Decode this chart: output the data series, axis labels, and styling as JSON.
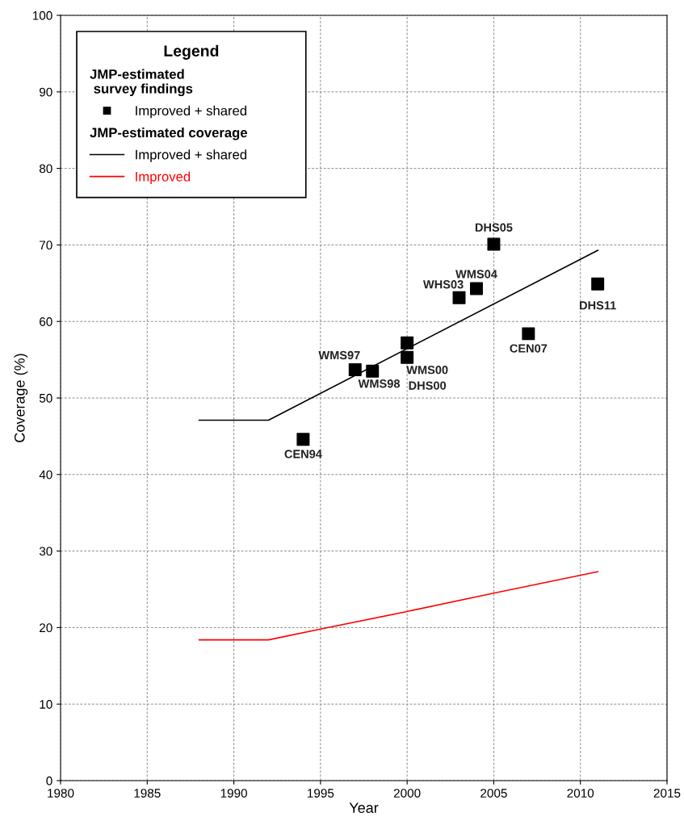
{
  "chart_data": {
    "type": "line",
    "xlabel": "Year",
    "ylabel": "Coverage (%)",
    "legend_title": "Legend",
    "xlim": [
      1980,
      2015
    ],
    "xticks": [
      1980,
      1985,
      1990,
      1995,
      2000,
      2005,
      2010,
      2015
    ],
    "ylim": [
      0,
      100
    ],
    "yticks": [
      0,
      10,
      20,
      30,
      40,
      50,
      60,
      70,
      80,
      90,
      100
    ],
    "grid": true,
    "legend": "top left",
    "series": [
      {
        "name": "Improved + shared",
        "type": "scatter",
        "marker": "square",
        "color": "#000000",
        "x": [
          1994,
          1997,
          1998,
          2000,
          2000,
          2003,
          2004,
          2005,
          2007,
          2011
        ],
        "values": [
          44.6,
          53.7,
          53.5,
          57.2,
          55.3,
          63.1,
          64.3,
          70.1,
          58.4,
          64.9
        ]
      },
      {
        "name": "Improved + shared",
        "color": "#000000",
        "x": [
          1988,
          1992,
          2011
        ],
        "values": [
          47.1,
          47.1,
          69.3
        ]
      },
      {
        "name": "Improved",
        "color": "#ff0000",
        "x": [
          1988,
          1992,
          1995,
          2000,
          2005,
          2011
        ],
        "values": [
          18.4,
          18.4,
          19.8,
          22.1,
          24.5,
          27.3
        ]
      }
    ],
    "annotations": [
      "JMP-estimated\n survey findings",
      "JMP-estimated coverage",
      {
        "text": "CEN94",
        "x": 1994,
        "y": 44.6
      },
      {
        "text": "WMS97",
        "x": 1997,
        "y": 53.7
      },
      {
        "text": "WMS98",
        "x": 1998,
        "y": 53.5
      },
      {
        "text": "WMS00",
        "x": 2000,
        "y": 55.3
      },
      {
        "text": "DHS00",
        "x": 2000,
        "y": 55.3
      },
      {
        "text": "WHS03",
        "x": 2003,
        "y": 63.1
      },
      {
        "text": "WMS04",
        "x": 2004,
        "y": 64.3
      },
      {
        "text": "DHS05",
        "x": 2005,
        "y": 70.1
      },
      {
        "text": "CEN07",
        "x": 2007,
        "y": 58.4
      },
      {
        "text": "DHS11",
        "x": 2011,
        "y": 64.9
      }
    ]
  }
}
